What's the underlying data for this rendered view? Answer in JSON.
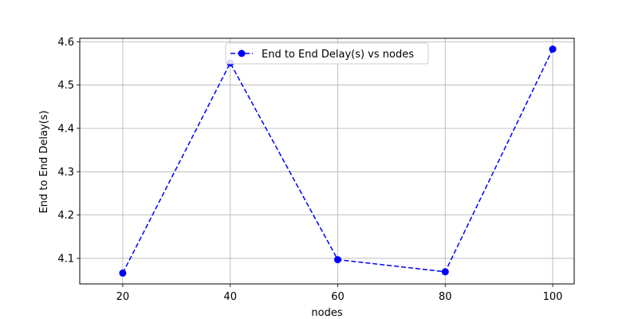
{
  "chart_data": {
    "type": "line",
    "title": "",
    "xlabel": "nodes",
    "ylabel": "End to End Delay(s)",
    "x": [
      20,
      40,
      60,
      80,
      100
    ],
    "series": [
      {
        "name": "End to End Delay(s) vs nodes",
        "values": [
          4.066,
          4.551,
          4.097,
          4.069,
          4.583
        ],
        "color": "#0000ff",
        "line_style": "dashed",
        "marker": "circle"
      }
    ],
    "xlim": [
      12,
      104
    ],
    "ylim": [
      4.041,
      4.608
    ],
    "xticks": [
      20,
      40,
      60,
      80,
      100
    ],
    "yticks": [
      4.1,
      4.2,
      4.3,
      4.4,
      4.5,
      4.6
    ],
    "ytick_labels": [
      "4.1",
      "4.2",
      "4.3",
      "4.4",
      "4.5",
      "4.6"
    ],
    "grid": true,
    "legend_position": "top-center"
  }
}
